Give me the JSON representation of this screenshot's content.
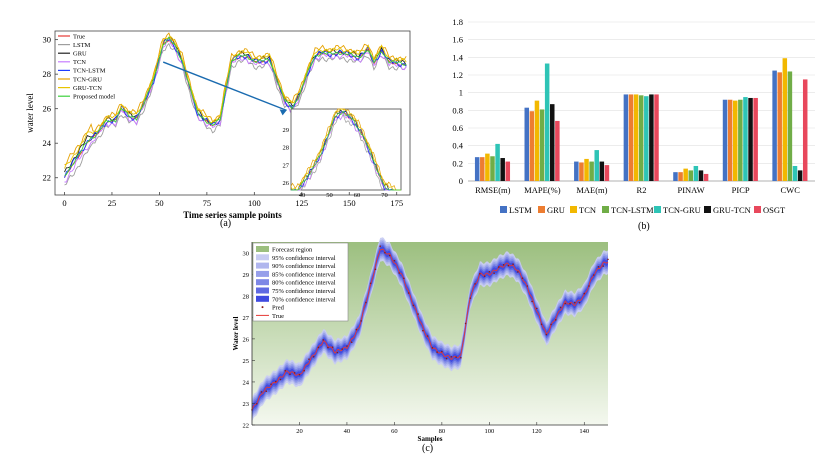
{
  "panel_labels": {
    "a": "(a)",
    "b": "(b)",
    "c": "(c)"
  },
  "chart_data": [
    {
      "type": "line",
      "xlabel": "Time series sample points",
      "ylabel": "water level",
      "xlim": [
        -5,
        182
      ],
      "ylim": [
        21,
        30.5
      ],
      "xticks": [
        0,
        25,
        50,
        75,
        100,
        125,
        150,
        175
      ],
      "yticks": [
        22,
        24,
        26,
        28,
        30
      ],
      "legend_position": "top-left",
      "anchors_x": [
        0,
        3,
        8,
        12,
        17,
        22,
        27,
        30,
        34,
        38,
        42,
        47,
        52,
        55,
        58,
        62,
        66,
        70,
        74,
        78,
        82,
        85,
        88,
        92,
        96,
        100,
        104,
        108,
        112,
        116,
        120,
        124,
        128,
        132,
        136,
        140,
        145,
        150,
        155,
        160,
        163,
        167,
        171,
        175,
        180
      ],
      "anchors_y": [
        22.0,
        22.5,
        23.3,
        24.0,
        24.5,
        25.2,
        25.3,
        26.0,
        25.5,
        25.4,
        26.3,
        27.6,
        29.7,
        30.0,
        29.6,
        28.7,
        27.2,
        25.7,
        25.3,
        25.0,
        25.3,
        27.1,
        28.7,
        29.0,
        29.0,
        28.7,
        28.7,
        28.8,
        27.6,
        26.4,
        26.0,
        26.8,
        28.0,
        29.0,
        29.2,
        29.1,
        29.2,
        29.1,
        28.9,
        29.4,
        28.6,
        29.3,
        28.7,
        28.6,
        28.5
      ],
      "series": [
        {
          "name": "True",
          "color": "#e53935",
          "offset": 0.0,
          "noise": 0.08
        },
        {
          "name": "LSTM",
          "color": "#9e9e9e",
          "offset": -0.25,
          "noise": 0.2
        },
        {
          "name": "GRU",
          "color": "#212121",
          "offset": 0.15,
          "noise": 0.18
        },
        {
          "name": "TCN",
          "color": "#c77dff",
          "offset": -0.1,
          "noise": 0.22
        },
        {
          "name": "TCN-LSTM",
          "color": "#1e3cff",
          "offset": 0.05,
          "noise": 0.2
        },
        {
          "name": "TCN-GRU",
          "color": "#e6a100",
          "offset": 0.35,
          "noise": 0.2
        },
        {
          "name": "GRU-TCN",
          "color": "#e8c400",
          "offset": 0.25,
          "noise": 0.15
        },
        {
          "name": "Proposed model",
          "color": "#3cd13c",
          "offset": 0.05,
          "noise": 0.12
        }
      ],
      "inset": {
        "xticks": [
          40,
          50,
          60,
          70
        ],
        "yticks": [
          26,
          27,
          28,
          29
        ],
        "xlim": [
          36,
          76
        ],
        "ylim": [
          25.6,
          30.2
        ]
      }
    },
    {
      "type": "bar",
      "categories": [
        "RMSE(m)",
        "MAPE(%)",
        "MAE(m)",
        "R2",
        "PINAW",
        "PICP",
        "CWC"
      ],
      "ylim": [
        0,
        1.8
      ],
      "yticks": [
        "0",
        "0.2",
        "0.4",
        "0.6",
        "0.8",
        "1",
        "1.2",
        "1.4",
        "1.6",
        "1.8"
      ],
      "legend_position": "bottom",
      "series": [
        {
          "name": "LSTM",
          "color": "#4472c4",
          "values": [
            0.27,
            0.83,
            0.22,
            0.98,
            0.1,
            0.92,
            1.25
          ]
        },
        {
          "name": "GRU",
          "color": "#ed7d31",
          "values": [
            0.27,
            0.79,
            0.21,
            0.98,
            0.1,
            0.92,
            1.23
          ]
        },
        {
          "name": "TCN",
          "color": "#f2b800",
          "values": [
            0.31,
            0.91,
            0.25,
            0.98,
            0.14,
            0.91,
            1.39
          ]
        },
        {
          "name": "TCN-LSTM",
          "color": "#70ad47",
          "values": [
            0.28,
            0.81,
            0.22,
            0.97,
            0.12,
            0.92,
            1.24
          ]
        },
        {
          "name": "TCN-GRU",
          "color": "#2ec4b6",
          "values": [
            0.42,
            1.33,
            0.35,
            0.96,
            0.17,
            0.95,
            0.17
          ]
        },
        {
          "name": "GRU-TCN",
          "color": "#111111",
          "values": [
            0.26,
            0.87,
            0.22,
            0.98,
            0.12,
            0.94,
            0.12
          ]
        },
        {
          "name": "OSGT",
          "color": "#e8485c",
          "values": [
            0.22,
            0.68,
            0.18,
            0.98,
            0.08,
            0.94,
            1.15
          ]
        }
      ]
    },
    {
      "type": "area",
      "xlabel": "Samples",
      "ylabel": "Water level",
      "xlim": [
        0,
        150
      ],
      "ylim": [
        22,
        30.5
      ],
      "xticks": [
        20,
        40,
        60,
        80,
        100,
        120,
        140
      ],
      "yticks": [
        22,
        23,
        24,
        25,
        26,
        27,
        28,
        29,
        30
      ],
      "legend_position": "top-left",
      "legend": [
        "Forecast region",
        "95% confidence interval",
        "90% confidence interval",
        "85% confidence interval",
        "80% confidence interval",
        "75% confidence interval",
        "70% confidence interval",
        "Pred",
        "True"
      ],
      "band_colors": [
        "#c8ccf2",
        "#b0b6ee",
        "#969fea",
        "#7d87e6",
        "#5f6ae2",
        "#3f4be0"
      ],
      "region_color": "#9cbf7f",
      "anchors_x": [
        0,
        5,
        10,
        15,
        20,
        25,
        30,
        35,
        40,
        45,
        50,
        54,
        58,
        63,
        68,
        72,
        76,
        80,
        84,
        88,
        92,
        96,
        100,
        104,
        108,
        112,
        116,
        120,
        124,
        128,
        132,
        136,
        140,
        144,
        148,
        150
      ],
      "anchors_y": [
        22.7,
        23.6,
        24.0,
        24.5,
        24.3,
        25.1,
        25.9,
        25.4,
        25.6,
        26.5,
        28.5,
        30.2,
        29.9,
        29.0,
        27.6,
        26.5,
        25.6,
        25.3,
        25.1,
        25.2,
        28.0,
        29.0,
        29.0,
        29.3,
        29.5,
        29.2,
        28.4,
        27.3,
        26.2,
        27.0,
        27.7,
        27.6,
        28.0,
        29.0,
        29.5,
        29.6
      ]
    }
  ]
}
